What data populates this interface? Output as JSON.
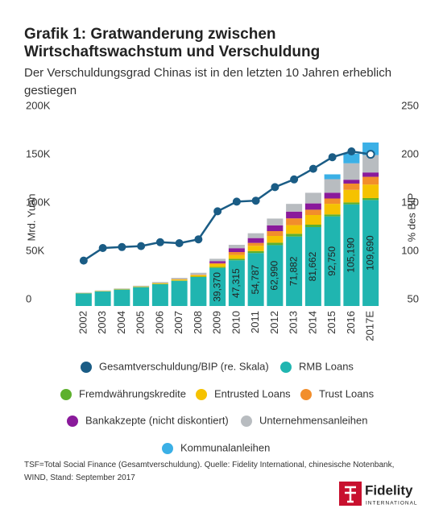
{
  "chart_data": {
    "type": "stacked_bar_line",
    "title": "Grafik 1: Gratwanderung zwischen Wirtschaftswachstum und Verschuldung",
    "subtitle": "Der Verschuldungsgrad Chinas ist in den letzten 10 Jahren erheblich gestiegen",
    "y_label": "Mrd. Yuan",
    "y2_label": "% des BIP",
    "note": "TSF=Total Social Finance (Gesamtverschuldung). Quelle: Fidelity International, chinesische Notenbank, WIND, Stand: September 2017",
    "logo_name": "Fidelity",
    "logo_sub": "INTERNATIONAL",
    "categories": [
      "2002",
      "2003",
      "2004",
      "2005",
      "2006",
      "2007",
      "2008",
      "2009",
      "2010",
      "2011",
      "2012",
      "2013",
      "2014",
      "2015",
      "2016",
      "2017E"
    ],
    "ylim": [
      0,
      200000
    ],
    "yticks": [
      {
        "value": 0,
        "label": "0"
      },
      {
        "value": 50000,
        "label": "50K"
      },
      {
        "value": 100000,
        "label": "100K"
      },
      {
        "value": 150000,
        "label": "150K"
      },
      {
        "value": 200000,
        "label": "200K"
      }
    ],
    "y2lim": [
      50,
      250
    ],
    "y2ticks": [
      50,
      100,
      150,
      200,
      250
    ],
    "series": [
      {
        "name": "Gesamtverschuldung/BIP (re. Skala)",
        "color": "#1a5c85",
        "axis": "y2",
        "kind": "line",
        "values": [
          97,
          110,
          111,
          112,
          116,
          115,
          119,
          148,
          158,
          159,
          173,
          181,
          192,
          204,
          210,
          207
        ]
      },
      {
        "name": "RMB Loans",
        "color": "#20b5b0",
        "kind": "bar",
        "values": [
          13000,
          15000,
          17000,
          19500,
          22500,
          26000,
          30000,
          39370,
          47315,
          54787,
          62990,
          71882,
          81662,
          92750,
          105190,
          109690
        ],
        "value_labels": [
          null,
          null,
          null,
          null,
          null,
          null,
          null,
          "39,370",
          "47,315",
          "54,787",
          "62,990",
          "71,882",
          "81,662",
          "92,750",
          "105,190",
          "109,690"
        ]
      },
      {
        "name": "Fremdwährungskredite",
        "color": "#5db02c",
        "kind": "bar",
        "values": [
          200,
          200,
          200,
          200,
          300,
          400,
          400,
          1000,
          1500,
          2000,
          2500,
          2800,
          2500,
          2000,
          2000,
          2000
        ]
      },
      {
        "name": "Entrusted Loans",
        "color": "#f5c200",
        "kind": "bar",
        "values": [
          300,
          400,
          500,
          600,
          800,
          1000,
          1500,
          3000,
          4000,
          5500,
          7000,
          9000,
          10000,
          11000,
          13000,
          14000
        ]
      },
      {
        "name": "Trust Loans",
        "color": "#f28e2b",
        "kind": "bar",
        "values": [
          0,
          0,
          0,
          0,
          200,
          400,
          500,
          1000,
          3000,
          3000,
          5000,
          7000,
          5500,
          5500,
          6500,
          8000
        ]
      },
      {
        "name": "Bankakzepte (nicht diskontiert)",
        "color": "#8a1a9b",
        "kind": "bar",
        "values": [
          0,
          0,
          0,
          0,
          0,
          0,
          0,
          2000,
          4000,
          5000,
          6000,
          7000,
          6500,
          6000,
          4000,
          4500
        ]
      },
      {
        "name": "Unternehmensanleihen",
        "color": "#b8bcc0",
        "kind": "bar",
        "values": [
          400,
          500,
          500,
          700,
          1000,
          1300,
          2000,
          2500,
          3500,
          5000,
          7000,
          8000,
          11000,
          14000,
          17000,
          18000
        ]
      },
      {
        "name": "Kommunalanleihen",
        "color": "#3bb0e6",
        "kind": "bar",
        "values": [
          0,
          0,
          0,
          0,
          0,
          0,
          0,
          0,
          0,
          0,
          0,
          0,
          0,
          5000,
          10000,
          13000
        ]
      }
    ]
  }
}
